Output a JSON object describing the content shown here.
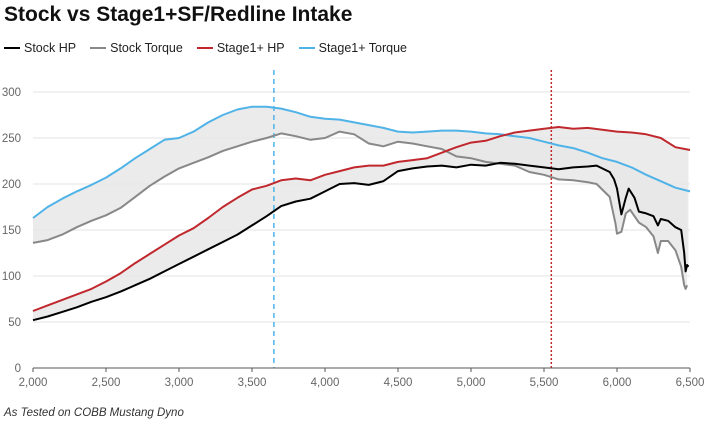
{
  "chart_data": {
    "type": "line",
    "title": "Stock vs Stage1+SF/Redline Intake",
    "note": "As Tested on COBB Mustang Dyno",
    "xlabel": "",
    "ylabel": "",
    "xlim": [
      2000,
      6500
    ],
    "ylim": [
      0,
      300
    ],
    "xticks": [
      2000,
      2500,
      3000,
      3500,
      4000,
      4500,
      5000,
      5500,
      6000,
      6500
    ],
    "xtick_labels": [
      "2,000",
      "2,500",
      "3,000",
      "3,500",
      "4,000",
      "4,500",
      "5,000",
      "5,500",
      "6,000",
      "6,500"
    ],
    "yticks": [
      0,
      50,
      100,
      150,
      200,
      250,
      300
    ],
    "ytick_labels": [
      "0",
      "50",
      "100",
      "150",
      "200",
      "250",
      "300"
    ],
    "grid": true,
    "legend_position": "top-left",
    "reference_lines": [
      {
        "x": 3650,
        "color": "#4fb3e8",
        "style": "dashed"
      },
      {
        "x": 5550,
        "color": "#c0282d",
        "style": "dotted"
      }
    ],
    "bands": [
      {
        "between": [
          "Stock HP",
          "Stage1+ HP"
        ],
        "color": "#e8e8e8"
      },
      {
        "between": [
          "Stock Torque",
          "Stage1+ Torque"
        ],
        "color": "#e8e8e8"
      }
    ],
    "series": [
      {
        "name": "Stock HP",
        "color": "#000000",
        "points": [
          [
            2000,
            52
          ],
          [
            2100,
            56
          ],
          [
            2200,
            61
          ],
          [
            2300,
            66
          ],
          [
            2400,
            72
          ],
          [
            2500,
            77
          ],
          [
            2600,
            83
          ],
          [
            2700,
            90
          ],
          [
            2800,
            97
          ],
          [
            2900,
            105
          ],
          [
            3000,
            113
          ],
          [
            3100,
            121
          ],
          [
            3200,
            129
          ],
          [
            3300,
            137
          ],
          [
            3400,
            145
          ],
          [
            3500,
            155
          ],
          [
            3600,
            165
          ],
          [
            3700,
            176
          ],
          [
            3800,
            181
          ],
          [
            3900,
            184
          ],
          [
            4000,
            192
          ],
          [
            4100,
            200
          ],
          [
            4200,
            201
          ],
          [
            4300,
            199
          ],
          [
            4400,
            203
          ],
          [
            4500,
            214
          ],
          [
            4600,
            217
          ],
          [
            4700,
            219
          ],
          [
            4800,
            220
          ],
          [
            4900,
            218
          ],
          [
            5000,
            221
          ],
          [
            5100,
            220
          ],
          [
            5200,
            223
          ],
          [
            5300,
            222
          ],
          [
            5400,
            220
          ],
          [
            5500,
            218
          ],
          [
            5600,
            216
          ],
          [
            5700,
            218
          ],
          [
            5800,
            219
          ],
          [
            5860,
            220
          ],
          [
            5950,
            213
          ],
          [
            5980,
            205
          ],
          [
            6000,
            195
          ],
          [
            6030,
            167
          ],
          [
            6060,
            185
          ],
          [
            6080,
            195
          ],
          [
            6120,
            185
          ],
          [
            6150,
            170
          ],
          [
            6200,
            168
          ],
          [
            6250,
            165
          ],
          [
            6280,
            155
          ],
          [
            6300,
            162
          ],
          [
            6350,
            160
          ],
          [
            6400,
            153
          ],
          [
            6440,
            150
          ],
          [
            6460,
            125
          ],
          [
            6470,
            105
          ],
          [
            6480,
            112
          ],
          [
            6490,
            110
          ]
        ]
      },
      {
        "name": "Stock Torque",
        "color": "#888888",
        "points": [
          [
            2000,
            136
          ],
          [
            2100,
            139
          ],
          [
            2200,
            145
          ],
          [
            2300,
            153
          ],
          [
            2400,
            160
          ],
          [
            2500,
            166
          ],
          [
            2600,
            174
          ],
          [
            2700,
            186
          ],
          [
            2800,
            198
          ],
          [
            2900,
            208
          ],
          [
            3000,
            217
          ],
          [
            3100,
            223
          ],
          [
            3200,
            229
          ],
          [
            3300,
            236
          ],
          [
            3400,
            241
          ],
          [
            3500,
            246
          ],
          [
            3600,
            250
          ],
          [
            3700,
            255
          ],
          [
            3800,
            252
          ],
          [
            3900,
            248
          ],
          [
            4000,
            250
          ],
          [
            4100,
            257
          ],
          [
            4200,
            254
          ],
          [
            4300,
            244
          ],
          [
            4400,
            241
          ],
          [
            4500,
            246
          ],
          [
            4600,
            244
          ],
          [
            4700,
            241
          ],
          [
            4800,
            238
          ],
          [
            4900,
            230
          ],
          [
            5000,
            228
          ],
          [
            5100,
            224
          ],
          [
            5200,
            222
          ],
          [
            5300,
            220
          ],
          [
            5400,
            213
          ],
          [
            5500,
            210
          ],
          [
            5600,
            205
          ],
          [
            5700,
            204
          ],
          [
            5800,
            202
          ],
          [
            5860,
            200
          ],
          [
            5950,
            186
          ],
          [
            5990,
            157
          ],
          [
            6000,
            146
          ],
          [
            6030,
            148
          ],
          [
            6060,
            168
          ],
          [
            6090,
            172
          ],
          [
            6150,
            158
          ],
          [
            6200,
            153
          ],
          [
            6250,
            143
          ],
          [
            6280,
            125
          ],
          [
            6300,
            138
          ],
          [
            6350,
            138
          ],
          [
            6400,
            128
          ],
          [
            6440,
            110
          ],
          [
            6460,
            90
          ],
          [
            6470,
            86
          ],
          [
            6480,
            90
          ]
        ]
      },
      {
        "name": "Stage1+ HP",
        "color": "#c0282d",
        "points": [
          [
            2000,
            62
          ],
          [
            2100,
            68
          ],
          [
            2200,
            74
          ],
          [
            2300,
            80
          ],
          [
            2400,
            86
          ],
          [
            2500,
            94
          ],
          [
            2600,
            103
          ],
          [
            2700,
            114
          ],
          [
            2800,
            124
          ],
          [
            2900,
            134
          ],
          [
            3000,
            144
          ],
          [
            3100,
            152
          ],
          [
            3200,
            163
          ],
          [
            3300,
            175
          ],
          [
            3400,
            185
          ],
          [
            3500,
            194
          ],
          [
            3600,
            198
          ],
          [
            3700,
            204
          ],
          [
            3800,
            206
          ],
          [
            3900,
            204
          ],
          [
            4000,
            210
          ],
          [
            4100,
            214
          ],
          [
            4200,
            218
          ],
          [
            4300,
            220
          ],
          [
            4400,
            220
          ],
          [
            4500,
            224
          ],
          [
            4600,
            226
          ],
          [
            4700,
            228
          ],
          [
            4800,
            234
          ],
          [
            4900,
            240
          ],
          [
            5000,
            245
          ],
          [
            5100,
            247
          ],
          [
            5200,
            252
          ],
          [
            5300,
            256
          ],
          [
            5400,
            258
          ],
          [
            5500,
            260
          ],
          [
            5600,
            262
          ],
          [
            5700,
            260
          ],
          [
            5800,
            261
          ],
          [
            5900,
            259
          ],
          [
            6000,
            257
          ],
          [
            6100,
            256
          ],
          [
            6200,
            254
          ],
          [
            6300,
            250
          ],
          [
            6400,
            240
          ],
          [
            6500,
            237
          ]
        ]
      },
      {
        "name": "Stage1+ Torque",
        "color": "#4fb3e8",
        "points": [
          [
            2000,
            163
          ],
          [
            2100,
            175
          ],
          [
            2200,
            184
          ],
          [
            2300,
            192
          ],
          [
            2400,
            199
          ],
          [
            2500,
            207
          ],
          [
            2600,
            217
          ],
          [
            2700,
            228
          ],
          [
            2800,
            238
          ],
          [
            2900,
            248
          ],
          [
            3000,
            250
          ],
          [
            3100,
            257
          ],
          [
            3200,
            267
          ],
          [
            3300,
            275
          ],
          [
            3400,
            281
          ],
          [
            3500,
            284
          ],
          [
            3600,
            284
          ],
          [
            3700,
            282
          ],
          [
            3800,
            278
          ],
          [
            3900,
            273
          ],
          [
            4000,
            271
          ],
          [
            4100,
            270
          ],
          [
            4200,
            267
          ],
          [
            4300,
            264
          ],
          [
            4400,
            261
          ],
          [
            4500,
            257
          ],
          [
            4600,
            256
          ],
          [
            4700,
            257
          ],
          [
            4800,
            258
          ],
          [
            4900,
            258
          ],
          [
            5000,
            257
          ],
          [
            5100,
            255
          ],
          [
            5200,
            254
          ],
          [
            5300,
            252
          ],
          [
            5400,
            250
          ],
          [
            5500,
            246
          ],
          [
            5600,
            242
          ],
          [
            5700,
            239
          ],
          [
            5800,
            234
          ],
          [
            5900,
            228
          ],
          [
            6000,
            224
          ],
          [
            6100,
            218
          ],
          [
            6200,
            210
          ],
          [
            6300,
            203
          ],
          [
            6400,
            196
          ],
          [
            6500,
            192
          ]
        ]
      }
    ]
  }
}
